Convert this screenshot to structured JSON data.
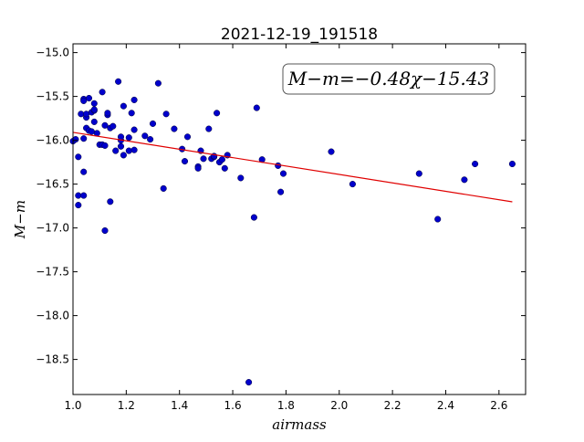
{
  "chart_data": {
    "type": "scatter",
    "title": "2021-12-19_191518",
    "xlabel": "airmass",
    "ylabel": "M−m",
    "xlim": [
      1.0,
      2.7
    ],
    "ylim": [
      -18.9,
      -14.9
    ],
    "y_inverted": true,
    "xticks": [
      "1.0",
      "1.2",
      "1.4",
      "1.6",
      "1.8",
      "2.0",
      "2.2",
      "2.4",
      "2.6"
    ],
    "yticks": [
      "−15.0",
      "−15.5",
      "−16.0",
      "−16.5",
      "−17.0",
      "−17.5",
      "−18.0",
      "−18.5"
    ],
    "annotation": "M−m=−0.48χ−15.43",
    "fit": {
      "slope": -0.48,
      "intercept": -15.43,
      "x_range": [
        1.0,
        2.65
      ],
      "color": "#e00000"
    },
    "point_color": "#0000cc",
    "points": [
      [
        1.0,
        -16.01
      ],
      [
        1.01,
        -15.99
      ],
      [
        1.02,
        -16.19
      ],
      [
        1.02,
        -16.63
      ],
      [
        1.02,
        -16.74
      ],
      [
        1.03,
        -15.7
      ],
      [
        1.04,
        -15.53
      ],
      [
        1.04,
        -15.55
      ],
      [
        1.04,
        -16.36
      ],
      [
        1.04,
        -15.98
      ],
      [
        1.04,
        -16.63
      ],
      [
        1.05,
        -15.74
      ],
      [
        1.05,
        -15.7
      ],
      [
        1.05,
        -15.86
      ],
      [
        1.06,
        -15.89
      ],
      [
        1.06,
        -15.52
      ],
      [
        1.07,
        -15.9
      ],
      [
        1.07,
        -15.68
      ],
      [
        1.08,
        -15.66
      ],
      [
        1.08,
        -15.65
      ],
      [
        1.08,
        -15.79
      ],
      [
        1.08,
        -15.58
      ],
      [
        1.09,
        -15.92
      ],
      [
        1.1,
        -16.05
      ],
      [
        1.11,
        -16.05
      ],
      [
        1.11,
        -15.45
      ],
      [
        1.12,
        -15.83
      ],
      [
        1.12,
        -17.03
      ],
      [
        1.12,
        -16.06
      ],
      [
        1.13,
        -15.71
      ],
      [
        1.13,
        -15.69
      ],
      [
        1.14,
        -16.7
      ],
      [
        1.14,
        -15.86
      ],
      [
        1.15,
        -15.84
      ],
      [
        1.16,
        -16.12
      ],
      [
        1.17,
        -15.33
      ],
      [
        1.18,
        -16.07
      ],
      [
        1.18,
        -16.0
      ],
      [
        1.18,
        -15.96
      ],
      [
        1.19,
        -15.61
      ],
      [
        1.19,
        -16.17
      ],
      [
        1.21,
        -16.12
      ],
      [
        1.21,
        -15.97
      ],
      [
        1.22,
        -15.69
      ],
      [
        1.23,
        -15.54
      ],
      [
        1.23,
        -15.88
      ],
      [
        1.23,
        -16.11
      ],
      [
        1.27,
        -15.95
      ],
      [
        1.29,
        -15.99
      ],
      [
        1.3,
        -15.81
      ],
      [
        1.32,
        -15.35
      ],
      [
        1.34,
        -16.55
      ],
      [
        1.35,
        -15.7
      ],
      [
        1.38,
        -15.87
      ],
      [
        1.41,
        -16.1
      ],
      [
        1.42,
        -16.24
      ],
      [
        1.43,
        -15.96
      ],
      [
        1.47,
        -16.3
      ],
      [
        1.47,
        -16.32
      ],
      [
        1.48,
        -16.12
      ],
      [
        1.49,
        -16.21
      ],
      [
        1.51,
        -15.87
      ],
      [
        1.52,
        -16.21
      ],
      [
        1.53,
        -16.19
      ],
      [
        1.53,
        -16.18
      ],
      [
        1.54,
        -15.69
      ],
      [
        1.55,
        -16.25
      ],
      [
        1.56,
        -16.22
      ],
      [
        1.57,
        -16.32
      ],
      [
        1.58,
        -16.17
      ],
      [
        1.63,
        -16.43
      ],
      [
        1.66,
        -18.76
      ],
      [
        1.68,
        -16.88
      ],
      [
        1.69,
        -15.63
      ],
      [
        1.71,
        -16.22
      ],
      [
        1.77,
        -16.29
      ],
      [
        1.78,
        -16.59
      ],
      [
        1.79,
        -16.38
      ],
      [
        1.97,
        -16.13
      ],
      [
        2.05,
        -16.5
      ],
      [
        2.3,
        -16.38
      ],
      [
        2.37,
        -16.9
      ],
      [
        2.47,
        -16.45
      ],
      [
        2.51,
        -16.27
      ],
      [
        2.65,
        -16.27
      ]
    ]
  }
}
